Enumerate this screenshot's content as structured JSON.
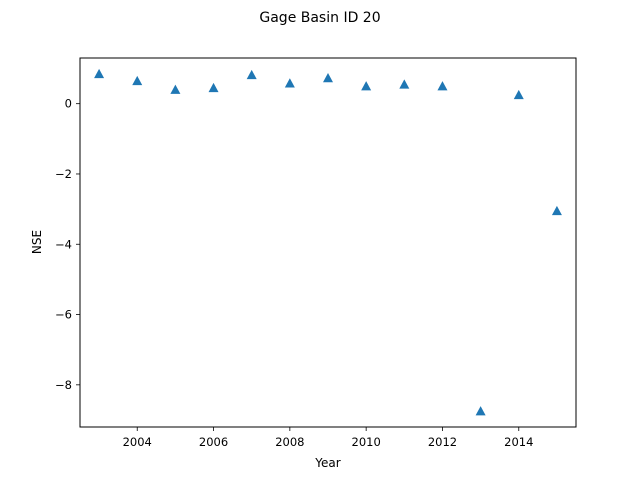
{
  "chart_data": {
    "type": "scatter",
    "title": "Gage Basin ID 20",
    "xlabel": "Year",
    "ylabel": "NSE",
    "xlim": [
      2002.5,
      2015.5
    ],
    "ylim": [
      -9.2,
      1.3
    ],
    "xticks": [
      2004,
      2006,
      2008,
      2010,
      2012,
      2014
    ],
    "yticks": [
      0,
      -2,
      -4,
      -6,
      -8
    ],
    "marker": "triangle-up",
    "color": "#1f77b4",
    "grid": false,
    "series": [
      {
        "x": [
          2003,
          2004,
          2005,
          2006,
          2007,
          2008,
          2009,
          2010,
          2011,
          2012,
          2013,
          2014,
          2015
        ],
        "y": [
          0.85,
          0.65,
          0.4,
          0.45,
          0.82,
          0.58,
          0.73,
          0.5,
          0.55,
          0.5,
          -8.75,
          0.25,
          -3.05
        ]
      }
    ]
  }
}
